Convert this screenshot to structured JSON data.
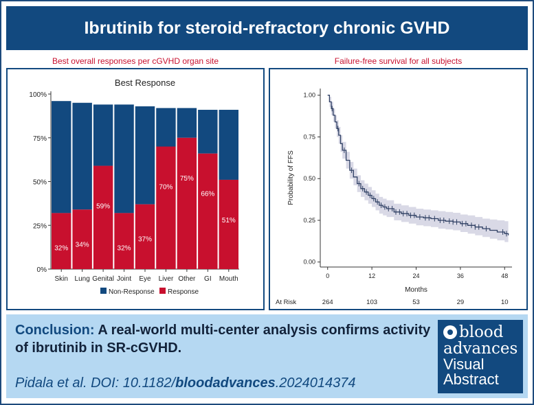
{
  "header": {
    "title": "Ibrutinib for steroid-refractory chronic GVHD"
  },
  "left_panel": {
    "subtitle": "Best overall responses per cGVHD organ site"
  },
  "right_panel": {
    "subtitle": "Failure-free survival for all subjects"
  },
  "colors": {
    "navy": "#12497f",
    "red": "#c8102e",
    "band": "#d9d9e6",
    "line": "#2e3f63"
  },
  "chart_data": [
    {
      "type": "bar",
      "title": "Best Response",
      "categories": [
        "Skin",
        "Lung",
        "Genital",
        "Joint",
        "Eye",
        "Liver",
        "Other",
        "GI",
        "Mouth"
      ],
      "series": [
        {
          "name": "Response",
          "values": [
            32,
            34,
            59,
            32,
            37,
            70,
            75,
            66,
            51
          ]
        },
        {
          "name": "Non-Response",
          "values": [
            64,
            61,
            35,
            62,
            56,
            22,
            17,
            25,
            40
          ]
        }
      ],
      "data_labels": [
        "32%",
        "34%",
        "59%",
        "32%",
        "37%",
        "70%",
        "75%",
        "66%",
        "51%"
      ],
      "y_ticks": [
        "0%",
        "25%",
        "50%",
        "75%",
        "100%"
      ],
      "ylim": [
        0,
        100
      ],
      "legend": {
        "position": "bottom",
        "entries": [
          "Non-Response",
          "Response"
        ]
      }
    },
    {
      "type": "line",
      "title": "",
      "xlabel": "Months",
      "ylabel": "Probability of FFS",
      "xlim": [
        -2,
        50
      ],
      "ylim": [
        -0.03,
        1.04
      ],
      "x_ticks": [
        0,
        12,
        24,
        36,
        48
      ],
      "y_ticks": [
        "0.00",
        "0.25",
        "0.50",
        "0.75",
        "1.00"
      ],
      "series": [
        {
          "name": "FFS",
          "x": [
            0,
            0.5,
            1,
            1.5,
            2,
            2.5,
            3,
            3.5,
            4,
            5,
            6,
            7,
            8,
            9,
            10,
            11,
            12,
            13,
            14,
            15,
            16,
            18,
            20,
            22,
            24,
            26,
            28,
            30,
            32,
            34,
            36,
            38,
            40,
            42,
            44,
            46,
            48,
            49
          ],
          "y": [
            1.0,
            0.96,
            0.92,
            0.88,
            0.84,
            0.8,
            0.76,
            0.71,
            0.67,
            0.61,
            0.55,
            0.51,
            0.47,
            0.44,
            0.42,
            0.4,
            0.38,
            0.36,
            0.34,
            0.33,
            0.32,
            0.3,
            0.29,
            0.28,
            0.27,
            0.265,
            0.26,
            0.25,
            0.245,
            0.24,
            0.23,
            0.22,
            0.21,
            0.2,
            0.19,
            0.18,
            0.17,
            0.16
          ],
          "lower": [
            1.0,
            0.93,
            0.88,
            0.84,
            0.8,
            0.75,
            0.71,
            0.66,
            0.62,
            0.56,
            0.5,
            0.46,
            0.42,
            0.39,
            0.37,
            0.35,
            0.33,
            0.31,
            0.29,
            0.28,
            0.27,
            0.25,
            0.24,
            0.23,
            0.22,
            0.215,
            0.21,
            0.2,
            0.195,
            0.19,
            0.18,
            0.17,
            0.16,
            0.15,
            0.14,
            0.13,
            0.12,
            0.11
          ],
          "upper": [
            1.0,
            0.99,
            0.96,
            0.92,
            0.88,
            0.85,
            0.81,
            0.76,
            0.72,
            0.66,
            0.6,
            0.56,
            0.52,
            0.49,
            0.47,
            0.45,
            0.43,
            0.41,
            0.39,
            0.38,
            0.37,
            0.35,
            0.34,
            0.33,
            0.32,
            0.315,
            0.31,
            0.305,
            0.3,
            0.295,
            0.285,
            0.28,
            0.27,
            0.26,
            0.255,
            0.25,
            0.245,
            0.24
          ]
        }
      ],
      "censor_x": [
        1.2,
        2.8,
        4.5,
        6.5,
        8.5,
        9.5,
        10.5,
        11.5,
        12.5,
        13.5,
        14.5,
        15.5,
        16.5,
        17.5,
        18.5,
        19.5,
        20.5,
        21.5,
        22.5,
        23.5,
        25,
        26.5,
        27.5,
        29,
        30.5,
        31.5,
        33,
        34,
        35,
        36.5,
        37.5,
        39,
        40,
        41,
        43,
        47.5,
        48.5
      ],
      "at_risk": {
        "label": "At Risk",
        "x": [
          0,
          12,
          24,
          36,
          48
        ],
        "values": [
          "264",
          "103",
          "53",
          "29",
          "10"
        ]
      }
    }
  ],
  "conclusion": {
    "lead": "Conclusion:",
    "text": "A real-world multi-center analysis confirms activity of ibrutinib in SR-cGVHD.",
    "citation_prefix": "Pidala et al. DOI: 10.1182/",
    "citation_bold": "bloodadvances",
    "citation_suffix": ".2024014374"
  },
  "logo": {
    "line1": "blood",
    "line2": "advances",
    "line3": "Visual",
    "line4": "Abstract"
  }
}
